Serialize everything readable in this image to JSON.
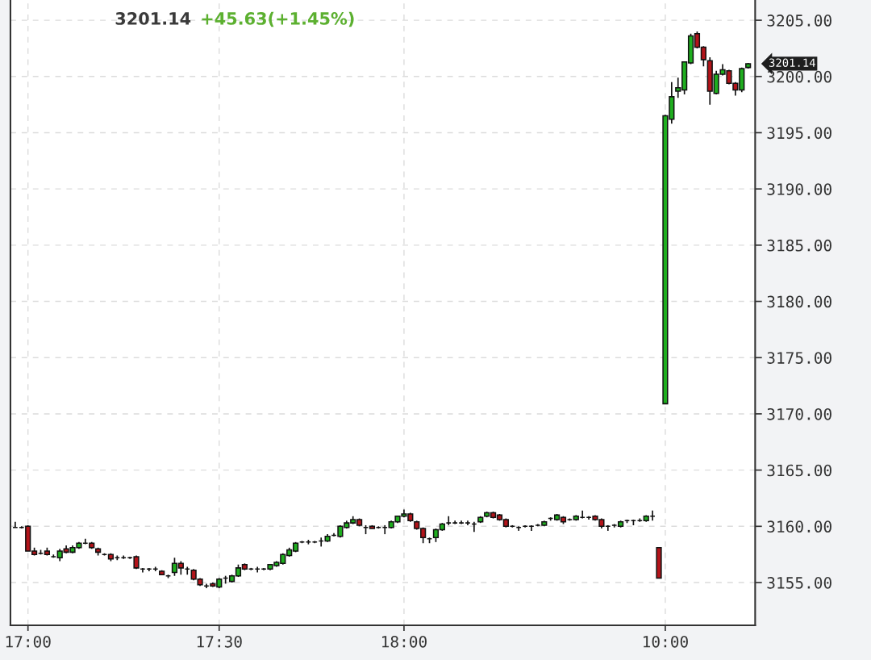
{
  "chart_data": {
    "type": "candlestick",
    "title": "3201.14",
    "subtitle": "+45.63(+1.45%)",
    "categories": [
      null,
      null,
      "17:00",
      null,
      null,
      null,
      null,
      null,
      null,
      null,
      null,
      null,
      null,
      null,
      null,
      null,
      null,
      null,
      null,
      null,
      null,
      null,
      null,
      null,
      null,
      null,
      null,
      null,
      null,
      null,
      null,
      null,
      "17:30",
      null,
      null,
      null,
      null,
      null,
      null,
      null,
      null,
      null,
      null,
      null,
      null,
      null,
      null,
      null,
      null,
      null,
      null,
      null,
      null,
      null,
      null,
      null,
      null,
      null,
      null,
      null,
      null,
      "18:00",
      null,
      null,
      null,
      null,
      null,
      null,
      null,
      null,
      null,
      null,
      null,
      null,
      null,
      null,
      null,
      null,
      null,
      null,
      null,
      null,
      null,
      null,
      null,
      null,
      null,
      null,
      null,
      null,
      null,
      null,
      null,
      null,
      null,
      null,
      null,
      null,
      null,
      null,
      null,
      null,
      "10:00",
      null,
      null,
      null,
      null,
      null,
      null,
      null,
      null,
      null,
      null,
      null,
      null,
      null
    ],
    "ohlc": [
      [
        3159.9,
        3160.4,
        3159.9,
        3159.9
      ],
      [
        3159.9,
        3160.0,
        3159.8,
        3159.9
      ],
      [
        3160.0,
        3160.1,
        3157.8,
        3157.8
      ],
      [
        3157.8,
        3158.1,
        3157.4,
        3157.5
      ],
      [
        3157.6,
        3157.9,
        3157.5,
        3157.6
      ],
      [
        3157.8,
        3158.1,
        3157.4,
        3157.5
      ],
      [
        3157.3,
        3157.5,
        3157.2,
        3157.3
      ],
      [
        3157.2,
        3158.0,
        3156.9,
        3157.8
      ],
      [
        3158.0,
        3158.3,
        3157.6,
        3157.7
      ],
      [
        3157.7,
        3158.3,
        3157.6,
        3158.1
      ],
      [
        3158.1,
        3158.6,
        3158.0,
        3158.5
      ],
      [
        3158.5,
        3158.9,
        3158.4,
        3158.5
      ],
      [
        3158.5,
        3158.6,
        3158.0,
        3158.1
      ],
      [
        3158.0,
        3158.1,
        3157.4,
        3157.7
      ],
      [
        3157.5,
        3157.6,
        3157.4,
        3157.5
      ],
      [
        3157.5,
        3157.6,
        3156.9,
        3157.1
      ],
      [
        3157.2,
        3157.4,
        3157.0,
        3157.2
      ],
      [
        3157.2,
        3157.4,
        3157.1,
        3157.2
      ],
      [
        3157.2,
        3157.3,
        3157.1,
        3157.2
      ],
      [
        3157.3,
        3157.4,
        3156.2,
        3156.3
      ],
      [
        3156.2,
        3156.3,
        3155.9,
        3156.2
      ],
      [
        3156.2,
        3156.3,
        3156.0,
        3156.2
      ],
      [
        3156.2,
        3156.4,
        3156.0,
        3156.2
      ],
      [
        3156.0,
        3156.1,
        3155.7,
        3155.7
      ],
      [
        3155.6,
        3155.7,
        3155.4,
        3155.6
      ],
      [
        3155.9,
        3157.2,
        3155.6,
        3156.7
      ],
      [
        3156.7,
        3156.9,
        3155.7,
        3156.3
      ],
      [
        3156.2,
        3156.4,
        3155.7,
        3156.2
      ],
      [
        3156.1,
        3156.2,
        3155.2,
        3155.3
      ],
      [
        3155.3,
        3155.4,
        3154.7,
        3154.8
      ],
      [
        3154.7,
        3154.9,
        3154.5,
        3154.7
      ],
      [
        3154.9,
        3155.0,
        3154.6,
        3154.7
      ],
      [
        3154.6,
        3155.4,
        3154.5,
        3155.3
      ],
      [
        3155.4,
        3155.6,
        3154.9,
        3155.4
      ],
      [
        3155.1,
        3155.7,
        3155.0,
        3155.6
      ],
      [
        3155.6,
        3156.6,
        3155.5,
        3156.3
      ],
      [
        3156.6,
        3156.7,
        3156.1,
        3156.2
      ],
      [
        3156.2,
        3156.3,
        3156.1,
        3156.2
      ],
      [
        3156.2,
        3156.4,
        3155.9,
        3156.2
      ],
      [
        3156.2,
        3156.3,
        3156.1,
        3156.2
      ],
      [
        3156.2,
        3156.6,
        3156.1,
        3156.6
      ],
      [
        3156.5,
        3156.9,
        3156.4,
        3156.8
      ],
      [
        3156.7,
        3157.6,
        3156.6,
        3157.5
      ],
      [
        3157.4,
        3158.1,
        3157.3,
        3157.9
      ],
      [
        3157.8,
        3158.6,
        3157.7,
        3158.5
      ],
      [
        3158.6,
        3158.7,
        3158.5,
        3158.6
      ],
      [
        3158.6,
        3158.8,
        3158.4,
        3158.6
      ],
      [
        3158.6,
        3158.7,
        3158.5,
        3158.6
      ],
      [
        3158.7,
        3159.0,
        3158.2,
        3158.7
      ],
      [
        3158.7,
        3159.3,
        3158.6,
        3159.1
      ],
      [
        3159.2,
        3159.4,
        3159.1,
        3159.2
      ],
      [
        3159.1,
        3160.1,
        3159.0,
        3160.0
      ],
      [
        3159.9,
        3160.5,
        3159.8,
        3160.3
      ],
      [
        3160.3,
        3160.9,
        3160.2,
        3160.6
      ],
      [
        3160.6,
        3160.7,
        3160.0,
        3160.1
      ],
      [
        3159.9,
        3160.1,
        3159.3,
        3159.9
      ],
      [
        3160.0,
        3160.1,
        3159.8,
        3159.8
      ],
      [
        3159.9,
        3160.0,
        3159.8,
        3159.9
      ],
      [
        3159.9,
        3160.1,
        3159.3,
        3159.9
      ],
      [
        3159.9,
        3160.5,
        3159.8,
        3160.4
      ],
      [
        3160.4,
        3160.9,
        3160.3,
        3160.9
      ],
      [
        3160.9,
        3161.5,
        3160.8,
        3161.1
      ],
      [
        3161.1,
        3161.2,
        3160.4,
        3160.5
      ],
      [
        3160.4,
        3160.5,
        3159.7,
        3159.8
      ],
      [
        3159.8,
        3159.9,
        3158.5,
        3159.0
      ],
      [
        3158.9,
        3159.0,
        3158.5,
        3158.9
      ],
      [
        3159.0,
        3159.8,
        3158.6,
        3159.7
      ],
      [
        3159.7,
        3160.3,
        3159.6,
        3160.2
      ],
      [
        3160.3,
        3160.9,
        3160.1,
        3160.3
      ],
      [
        3160.3,
        3160.5,
        3160.2,
        3160.3
      ],
      [
        3160.3,
        3160.5,
        3160.2,
        3160.3
      ],
      [
        3160.3,
        3160.5,
        3160.1,
        3160.3
      ],
      [
        3160.2,
        3160.4,
        3159.5,
        3160.2
      ],
      [
        3160.4,
        3160.9,
        3160.3,
        3160.8
      ],
      [
        3160.9,
        3161.3,
        3160.8,
        3161.2
      ],
      [
        3161.2,
        3161.3,
        3160.7,
        3160.8
      ],
      [
        3161.0,
        3161.1,
        3160.5,
        3160.6
      ],
      [
        3160.6,
        3160.7,
        3159.9,
        3160.0
      ],
      [
        3160.0,
        3160.1,
        3159.9,
        3160.0
      ],
      [
        3159.9,
        3160.0,
        3159.6,
        3159.9
      ],
      [
        3160.0,
        3160.1,
        3159.9,
        3160.0
      ],
      [
        3160.0,
        3160.1,
        3159.6,
        3160.0
      ],
      [
        3160.1,
        3160.2,
        3160.0,
        3160.1
      ],
      [
        3160.1,
        3160.5,
        3160.0,
        3160.4
      ],
      [
        3160.7,
        3160.8,
        3160.5,
        3160.7
      ],
      [
        3160.6,
        3161.1,
        3160.5,
        3161.0
      ],
      [
        3160.8,
        3160.9,
        3160.2,
        3160.4
      ],
      [
        3160.6,
        3160.7,
        3160.5,
        3160.6
      ],
      [
        3160.6,
        3161.0,
        3160.5,
        3160.9
      ],
      [
        3160.8,
        3161.4,
        3160.7,
        3160.8
      ],
      [
        3160.8,
        3160.9,
        3160.6,
        3160.8
      ],
      [
        3160.9,
        3161.0,
        3160.5,
        3160.6
      ],
      [
        3160.6,
        3160.7,
        3159.8,
        3160.0
      ],
      [
        3160.0,
        3160.1,
        3159.6,
        3160.0
      ],
      [
        3160.1,
        3160.2,
        3159.9,
        3160.1
      ],
      [
        3160.0,
        3160.5,
        3159.9,
        3160.4
      ],
      [
        3160.5,
        3160.6,
        3160.3,
        3160.5
      ],
      [
        3160.5,
        3160.6,
        3160.1,
        3160.5
      ],
      [
        3160.5,
        3160.7,
        3160.4,
        3160.5
      ],
      [
        3160.5,
        3161.0,
        3160.4,
        3160.9
      ],
      [
        3160.9,
        3161.4,
        3160.5,
        3160.9
      ],
      [
        3158.1,
        3158.1,
        3155.4,
        3155.4
      ],
      [
        3170.9,
        3196.6,
        3170.9,
        3196.5
      ],
      [
        3196.2,
        3199.5,
        3195.8,
        3198.2
      ],
      [
        3198.7,
        3199.9,
        3198.1,
        3199.0
      ],
      [
        3198.8,
        3201.3,
        3198.4,
        3201.3
      ],
      [
        3201.2,
        3203.8,
        3201.1,
        3203.6
      ],
      [
        3203.8,
        3204.0,
        3202.5,
        3202.6
      ],
      [
        3202.6,
        3202.7,
        3200.9,
        3201.5
      ],
      [
        3201.4,
        3201.7,
        3197.5,
        3198.7
      ],
      [
        3198.5,
        3200.5,
        3198.4,
        3200.2
      ],
      [
        3200.2,
        3201.1,
        3200.1,
        3200.6
      ],
      [
        3200.5,
        3200.6,
        3199.3,
        3199.4
      ],
      [
        3199.4,
        3199.5,
        3198.3,
        3198.8
      ],
      [
        3198.8,
        3200.8,
        3198.6,
        3200.7
      ],
      [
        3200.8,
        3201.2,
        3200.7,
        3201.14
      ]
    ],
    "ylim": [
      3151.2,
      3206.8
    ],
    "yticks": [
      {
        "value": 3155,
        "label": "3155.00"
      },
      {
        "value": 3160,
        "label": "3160.00"
      },
      {
        "value": 3165,
        "label": "3165.00"
      },
      {
        "value": 3170,
        "label": "3170.00"
      },
      {
        "value": 3175,
        "label": "3175.00"
      },
      {
        "value": 3180,
        "label": "3180.00"
      },
      {
        "value": 3185,
        "label": "3185.00"
      },
      {
        "value": 3190,
        "label": "3190.00"
      },
      {
        "value": 3195,
        "label": "3195.00"
      },
      {
        "value": 3200,
        "label": "3200.00"
      },
      {
        "value": 3205,
        "label": "3205.00"
      }
    ],
    "grid": true,
    "annotations": [
      "3201.14"
    ]
  }
}
